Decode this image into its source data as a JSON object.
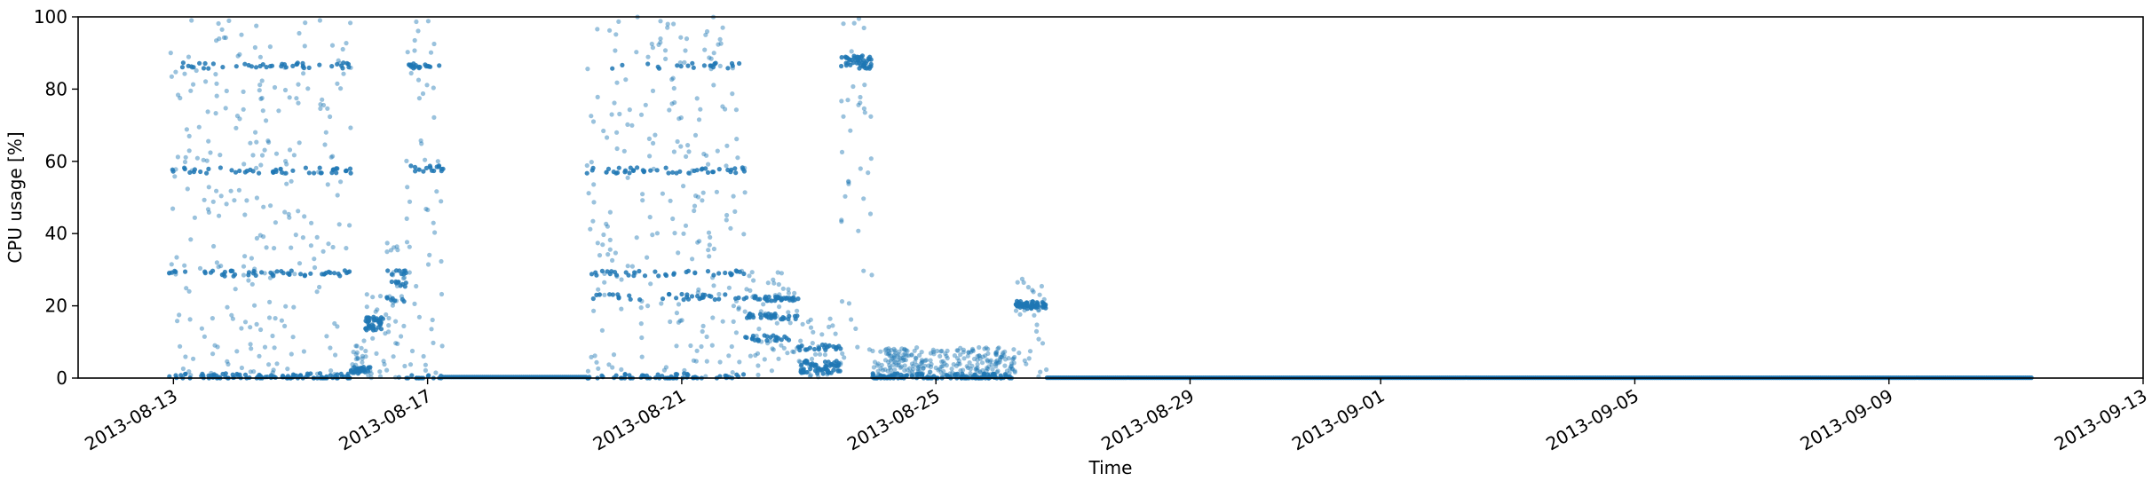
{
  "chart_data": {
    "type": "scatter",
    "title": "",
    "xlabel": "Time",
    "ylabel": "CPU usage [%]",
    "xlim": [
      "2013-08-11T12:00",
      "2013-09-13T00:00"
    ],
    "ylim": [
      0,
      100
    ],
    "grid": false,
    "x_ticks": [
      "2013-08-13",
      "2013-08-17",
      "2013-08-21",
      "2013-08-25",
      "2013-08-29",
      "2013-09-01",
      "2013-09-05",
      "2013-09-09",
      "2013-09-13"
    ],
    "y_ticks": [
      "0",
      "20",
      "40",
      "60",
      "80",
      "100"
    ],
    "series": [
      {
        "color": "#1f77b4",
        "marker": "dot",
        "alpha": 0.45,
        "segments": [
          {
            "start": "2013-08-12T22:00",
            "end": "2013-08-15T19:00",
            "mode": "scatter",
            "levels": [
              0,
              0.5,
              29,
              57.5,
              86.5
            ],
            "level_weight": 0.45
          },
          {
            "start": "2013-08-15T19:00",
            "end": "2013-08-16T03:00",
            "mode": "scatter",
            "levels": [
              2,
              2.5
            ],
            "level_weight": 0.7
          },
          {
            "start": "2013-08-16T00:00",
            "end": "2013-08-16T08:00",
            "mode": "scatter",
            "levels": [
              14,
              15.5,
              16.5
            ],
            "level_weight": 0.7
          },
          {
            "start": "2013-08-16T08:00",
            "end": "2013-08-16T16:00",
            "mode": "scatter",
            "levels": [
              22,
              26,
              29.5
            ],
            "level_weight": 0.55
          },
          {
            "start": "2013-08-16T16:00",
            "end": "2013-08-17T06:00",
            "mode": "scatter",
            "levels": [
              0,
              86.5,
              58
            ],
            "level_weight": 0.5
          },
          {
            "start": "2013-08-17T06:00",
            "end": "2013-08-19T12:00",
            "mode": "flat",
            "levels": [
              0.3
            ]
          },
          {
            "start": "2013-08-19T12:00",
            "end": "2013-08-22T00:00",
            "mode": "scatter",
            "levels": [
              0,
              0.5,
              22.5,
              29,
              57.5,
              86.5
            ],
            "level_weight": 0.45
          },
          {
            "start": "2013-08-22T00:00",
            "end": "2013-08-22T20:00",
            "mode": "scatter",
            "levels": [
              22,
              17,
              11
            ],
            "level_weight": 0.6
          },
          {
            "start": "2013-08-22T20:00",
            "end": "2013-08-23T12:00",
            "mode": "scatter",
            "levels": [
              8.5,
              4,
              2
            ],
            "level_weight": 0.6
          },
          {
            "start": "2013-08-23T12:00",
            "end": "2013-08-24T00:00",
            "mode": "scatter",
            "levels": [
              86.5,
              88.5
            ],
            "level_weight": 0.6
          },
          {
            "start": "2013-08-24T00:00",
            "end": "2013-08-26T06:00",
            "mode": "scatter",
            "levels": [
              0,
              0.5
            ],
            "level_weight": 0.3
          },
          {
            "start": "2013-08-26T06:00",
            "end": "2013-08-26T18:00",
            "mode": "scatter",
            "levels": [
              20,
              20.5
            ],
            "level_weight": 0.6
          },
          {
            "start": "2013-08-26T18:00",
            "end": "2013-09-11T06:00",
            "mode": "flat",
            "levels": [
              0.1
            ]
          }
        ]
      }
    ]
  }
}
